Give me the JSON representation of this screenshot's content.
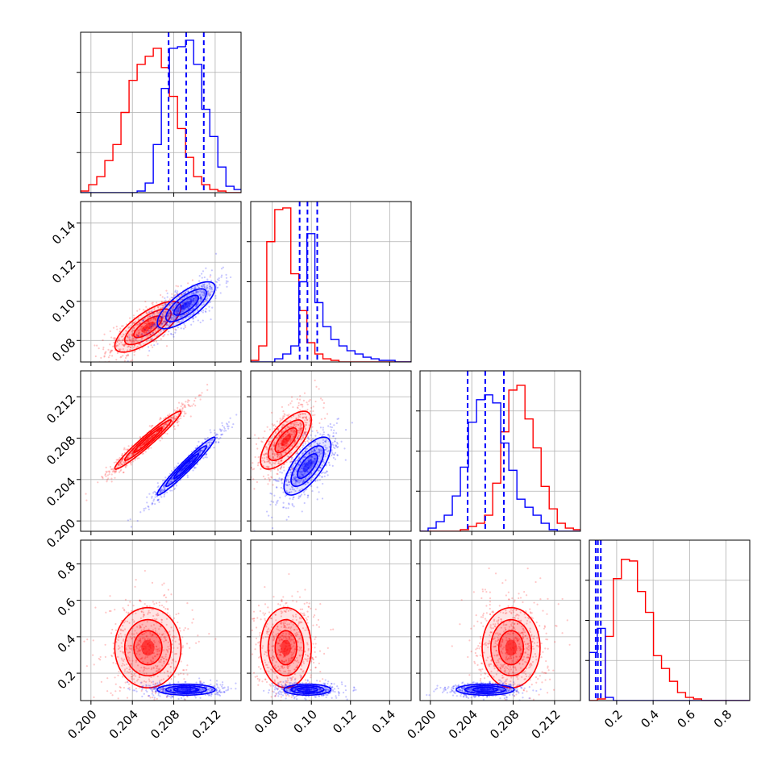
{
  "colors": {
    "red": "#ff0000",
    "blue": "#0000ff"
  },
  "chart_data": {
    "type": "corner",
    "parameters": 4,
    "grid": true,
    "legend": "none",
    "axes": [
      {
        "range": [
          0.199,
          0.2145
        ],
        "ticks": [
          0.2,
          0.204,
          0.208,
          0.212
        ],
        "tick_labels": [
          "0.200",
          "0.204",
          "0.208",
          "0.212"
        ]
      },
      {
        "range": [
          0.069,
          0.151
        ],
        "ticks": [
          0.08,
          0.1,
          0.12,
          0.14
        ],
        "tick_labels": [
          "0.08",
          "0.10",
          "0.12",
          "0.14"
        ]
      },
      {
        "range": [
          0.199,
          0.2145
        ],
        "ticks": [
          0.2,
          0.204,
          0.208,
          0.212
        ],
        "tick_labels": [
          "0.200",
          "0.204",
          "0.208",
          "0.212"
        ]
      },
      {
        "range": [
          0.05,
          0.93
        ],
        "ticks": [
          0.2,
          0.4,
          0.6,
          0.8
        ],
        "tick_labels": [
          "0.2",
          "0.4",
          "0.6",
          "0.8"
        ]
      }
    ],
    "blue_quantiles": [
      [
        0.2075,
        0.2092,
        0.2109
      ],
      [
        0.094,
        0.098,
        0.103
      ],
      [
        0.2036,
        0.2053,
        0.2071
      ],
      [
        0.085,
        0.097,
        0.113
      ]
    ],
    "series": [
      {
        "color": "#ff0000",
        "mean": [
          0.2055,
          0.087,
          0.2078,
          0.34
        ],
        "std": [
          0.0016,
          0.0065,
          0.0014,
          0.11
        ],
        "histograms": [
          {
            "edges_start": 0.199,
            "bin": 0.00078,
            "counts": [
              0.01,
              0.05,
              0.1,
              0.2,
              0.3,
              0.5,
              0.7,
              0.8,
              0.85,
              0.9,
              0.78,
              0.6,
              0.4,
              0.22,
              0.1,
              0.05,
              0.02,
              0.01,
              0.0,
              0.0
            ]
          },
          {
            "edges_start": 0.069,
            "bin": 0.0041,
            "counts": [
              0.01,
              0.1,
              0.75,
              0.95,
              0.96,
              0.55,
              0.32,
              0.12,
              0.05,
              0.02,
              0.01,
              0.0,
              0.0,
              0.0,
              0.0,
              0.0,
              0.0,
              0.0,
              0.0,
              0.0
            ]
          },
          {
            "edges_start": 0.199,
            "bin": 0.00078,
            "counts": [
              0.0,
              0.0,
              0.0,
              0.0,
              0.0,
              0.01,
              0.03,
              0.05,
              0.1,
              0.3,
              0.62,
              0.88,
              0.91,
              0.7,
              0.52,
              0.28,
              0.14,
              0.05,
              0.02,
              0.01
            ]
          },
          {
            "edges_start": 0.05,
            "bin": 0.044,
            "counts": [
              0.0,
              0.01,
              0.4,
              0.76,
              0.88,
              0.87,
              0.68,
              0.55,
              0.28,
              0.2,
              0.12,
              0.05,
              0.02,
              0.01,
              0.0,
              0.0,
              0.0,
              0.0,
              0.0,
              0.0
            ]
          }
        ]
      },
      {
        "color": "#0000ff",
        "mean": [
          0.2092,
          0.098,
          0.2053,
          0.11
        ],
        "std": [
          0.0014,
          0.006,
          0.0014,
          0.015
        ],
        "histograms": [
          {
            "edges_start": 0.199,
            "bin": 0.00078,
            "counts": [
              0.0,
              0.0,
              0.0,
              0.0,
              0.0,
              0.0,
              0.0,
              0.01,
              0.06,
              0.3,
              0.65,
              0.9,
              0.91,
              0.95,
              0.8,
              0.52,
              0.35,
              0.16,
              0.04,
              0.02
            ]
          },
          {
            "edges_start": 0.069,
            "bin": 0.0041,
            "counts": [
              0.0,
              0.0,
              0.0,
              0.02,
              0.05,
              0.1,
              0.5,
              0.8,
              0.37,
              0.22,
              0.14,
              0.1,
              0.07,
              0.05,
              0.03,
              0.02,
              0.01,
              0.01,
              0.0,
              0.0
            ]
          },
          {
            "edges_start": 0.199,
            "bin": 0.00078,
            "counts": [
              0.0,
              0.02,
              0.06,
              0.1,
              0.22,
              0.4,
              0.68,
              0.82,
              0.85,
              0.8,
              0.55,
              0.38,
              0.2,
              0.15,
              0.1,
              0.05,
              0.01,
              0.0,
              0.0,
              0.0
            ]
          },
          {
            "edges_start": 0.05,
            "bin": 0.044,
            "counts": [
              0.3,
              0.45,
              0.02,
              0.0,
              0.0,
              0.0,
              0.0,
              0.0,
              0.0,
              0.0,
              0.0,
              0.0,
              0.0,
              0.0,
              0.0,
              0.0,
              0.0,
              0.0,
              0.0,
              0.0
            ]
          }
        ]
      }
    ],
    "pair_correlations": {
      "1-0": {
        "red": 0.75,
        "blue": 0.75
      },
      "2-0": {
        "red": 0.97,
        "blue": 0.97
      },
      "2-1": {
        "red": 0.7,
        "blue": 0.7
      },
      "3-0": {
        "red": 0.0,
        "blue": 0.0
      },
      "3-1": {
        "red": 0.0,
        "blue": 0.0
      },
      "3-2": {
        "red": 0.0,
        "blue": 0.0
      }
    }
  }
}
